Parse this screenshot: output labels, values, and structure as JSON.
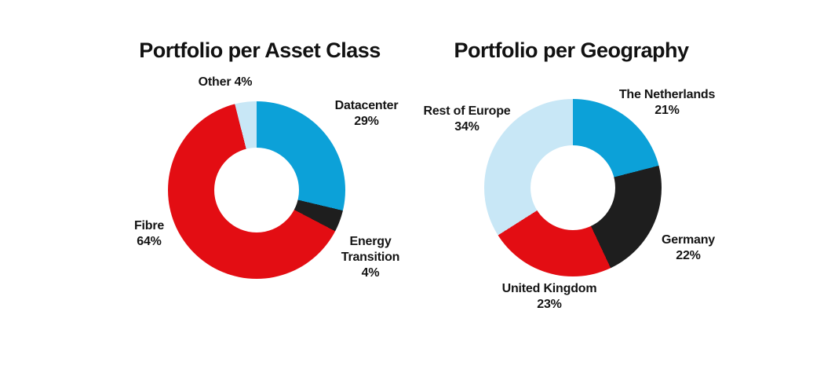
{
  "page": {
    "background": "#ffffff",
    "text_color": "#141414"
  },
  "chart_data": [
    {
      "type": "pie",
      "subtype": "donut",
      "title": "Portfolio per Asset Class",
      "categories": [
        "Datacenter",
        "Energy Transition",
        "Fibre",
        "Other"
      ],
      "values": [
        29,
        4,
        64,
        4
      ],
      "unit": "%",
      "colors": [
        "#0ca1d8",
        "#1e1e1e",
        "#e30d13",
        "#c8e7f6"
      ],
      "start_angle_deg": 0,
      "direction": "clockwise",
      "donut_hole_ratio": 0.48,
      "legend_position": "outside-callout-labels",
      "labels": {
        "datacenter": "Datacenter\n29%",
        "energy_transition": "Energy\nTransition\n4%",
        "fibre": "Fibre\n64%",
        "other": "Other 4%"
      }
    },
    {
      "type": "pie",
      "subtype": "donut",
      "title": "Portfolio per Geography",
      "categories": [
        "The Netherlands",
        "Germany",
        "United Kingdom",
        "Rest of Europe"
      ],
      "values": [
        21,
        22,
        23,
        34
      ],
      "unit": "%",
      "colors": [
        "#0ca1d8",
        "#1e1e1e",
        "#e30d13",
        "#c8e7f6"
      ],
      "start_angle_deg": 0,
      "direction": "clockwise",
      "donut_hole_ratio": 0.48,
      "legend_position": "outside-callout-labels",
      "labels": {
        "netherlands": "The Netherlands\n21%",
        "germany": "Germany\n22%",
        "united_kingdom": "United Kingdom\n23%",
        "rest_of_europe": "Rest of Europe\n34%"
      }
    }
  ]
}
